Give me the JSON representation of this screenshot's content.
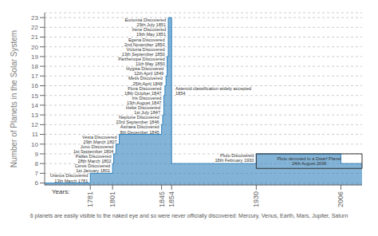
{
  "chart_data": {
    "type": "step",
    "y_label": "Number of Planets in the Solar System",
    "footnote": "6 planets are easily visible to the naked eye and so were never officially discovered: Mercury, Venus, Earth, Mars, Jupiter, Saturn",
    "x": [
      1740,
      1781,
      1781,
      1801,
      1801,
      1802,
      1802,
      1804,
      1804,
      1807,
      1807,
      1845,
      1845,
      1846,
      1846,
      1847,
      1847,
      1848,
      1848,
      1849,
      1849,
      1850,
      1850,
      1850,
      1850,
      1850,
      1851,
      1851,
      1851,
      1851,
      1854,
      1854,
      1930,
      1930,
      2006,
      2006,
      2025
    ],
    "values": [
      6,
      6,
      7,
      7,
      8,
      8,
      9,
      9,
      10,
      10,
      11,
      11,
      12,
      12,
      13,
      13,
      15,
      15,
      16,
      16,
      17,
      17,
      18,
      18,
      19,
      19,
      20,
      20,
      21,
      23,
      23,
      8,
      8,
      9,
      9,
      8,
      8
    ],
    "xlim": [
      1740,
      2025
    ],
    "ylim": [
      5.8,
      23.5
    ],
    "xticks": [
      1781,
      1801,
      1845,
      1854,
      1930,
      2006
    ],
    "yticks": [
      6,
      7,
      8,
      9,
      10,
      11,
      12,
      13,
      14,
      15,
      16,
      17,
      18,
      19,
      20,
      21,
      22,
      23
    ],
    "grid": true,
    "annotations": [
      {
        "text": "Eunomia Discovered\n29th July 1851",
        "x": 1851,
        "y": 22.5,
        "align": "right"
      },
      {
        "text": "Irene Discovered\n19th May 1851",
        "x": 1851,
        "y": 21.5,
        "align": "right"
      },
      {
        "text": "Egeria Discovered\n2nd November 1850",
        "x": 1850,
        "y": 20.5,
        "align": "right"
      },
      {
        "text": "Victoria Discovered\n13th September 1850",
        "x": 1850,
        "y": 19.5,
        "align": "right"
      },
      {
        "text": "Parthenope Discovered\n11th May 1850",
        "x": 1850,
        "y": 18.5,
        "align": "right"
      },
      {
        "text": "Hygiea Discovered\n12th April 1849",
        "x": 1849,
        "y": 17.5,
        "align": "right"
      },
      {
        "text": "Metis Discovered\n25th April 1848",
        "x": 1848,
        "y": 16.5,
        "align": "right"
      },
      {
        "text": "Flora Discovered\n18th October 1847",
        "x": 1847,
        "y": 15.5,
        "align": "right"
      },
      {
        "text": "Iris Discovered\n13th August 1847",
        "x": 1847,
        "y": 14.5,
        "align": "right"
      },
      {
        "text": "Hebe Discovered\n1st July 1847",
        "x": 1846,
        "y": 13.5,
        "align": "right"
      },
      {
        "text": "Neptune Discovered\n23rd September 1846",
        "x": 1845,
        "y": 12.5,
        "align": "right"
      },
      {
        "text": "Astraea Discovered\n8th December 1845",
        "x": 1845,
        "y": 11.5,
        "align": "right"
      },
      {
        "text": "Vesta Discovered\n29th March 1807",
        "x": 1807,
        "y": 10.5,
        "align": "right"
      },
      {
        "text": "Juno Discovered\n1st September 1804",
        "x": 1804,
        "y": 9.5,
        "align": "right"
      },
      {
        "text": "Pallas Discovered\n28th March 1802",
        "x": 1802,
        "y": 8.5,
        "align": "right"
      },
      {
        "text": "Ceres Discovered\n1st January 1801",
        "x": 1801,
        "y": 7.5,
        "align": "right"
      },
      {
        "text": "Uranus Discovered\n13th March 1781",
        "x": 1781,
        "y": 6.5,
        "align": "right"
      },
      {
        "text": "Asteroid classification widely accepted\n1854",
        "x": 1856,
        "y": 15.5,
        "align": "left"
      },
      {
        "text": "Pluto Discovered\n18th February 1930",
        "x": 1930,
        "y": 8.6,
        "align": "right"
      },
      {
        "text": "Years:",
        "x": 1745,
        "y": 5.55,
        "align": "left"
      }
    ],
    "box": {
      "text": "Pluto demoted to a Dwarf Planet\n24th August 2006",
      "x1": 1930,
      "x2": 2025,
      "y1": 7.5,
      "y2": 9
    }
  }
}
